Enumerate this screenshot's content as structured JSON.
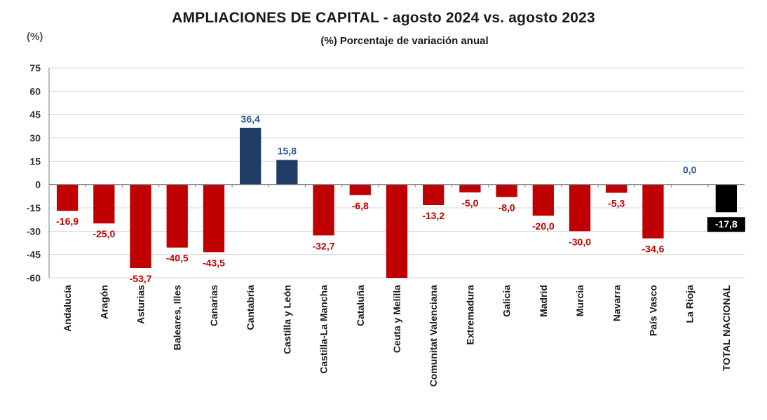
{
  "chart_data": {
    "type": "bar",
    "title": "AMPLIACIONES DE CAPITAL - agosto 2024 vs. agosto 2023",
    "subtitle": "(%) Porcentaje de variación anual",
    "ylabel": "(%)",
    "ylim": [
      -60,
      75
    ],
    "yticks": [
      75,
      60,
      45,
      30,
      15,
      0,
      -15,
      -30,
      -45,
      -60
    ],
    "grid": true,
    "categories": [
      "Andalucía",
      "Aragón",
      "Asturias",
      "Baleares, Illes",
      "Canarias",
      "Cantabria",
      "Castilla y León",
      "Castilla-La Mancha",
      "Cataluña",
      "Ceuta y Melilla",
      "Comunitat Valenciana",
      "Extremadura",
      "Galicia",
      "Madrid",
      "Murcia",
      "Navarra",
      "País Vasco",
      "La Rioja",
      "TOTAL NACIONAL"
    ],
    "values": [
      -16.9,
      -25.0,
      -53.7,
      -40.5,
      -43.5,
      36.4,
      15.8,
      -32.7,
      -6.8,
      -60,
      -13.2,
      -5.0,
      -8.0,
      -20.0,
      -30.0,
      -5.3,
      -34.6,
      0.0,
      -17.8
    ],
    "value_labels": [
      "-16,9",
      "-25,0",
      "-53,7",
      "-40,5",
      "-43,5",
      "36,4",
      "15,8",
      "-32,7",
      "-6,8",
      "",
      "-13,2",
      "-5,0",
      "-8,0",
      "-20,0",
      "-30,0",
      "-5,3",
      "-34,6",
      "0,0",
      "-17,8"
    ],
    "colors": {
      "negative": "#c00000",
      "positive": "#1f3c64",
      "positive_label": "#2e5597",
      "total": "#000000",
      "total_label_bg": "#000000",
      "total_label_text": "#ffffff",
      "grid": "#d9d9d9",
      "axis": "#7f7f7f"
    }
  }
}
